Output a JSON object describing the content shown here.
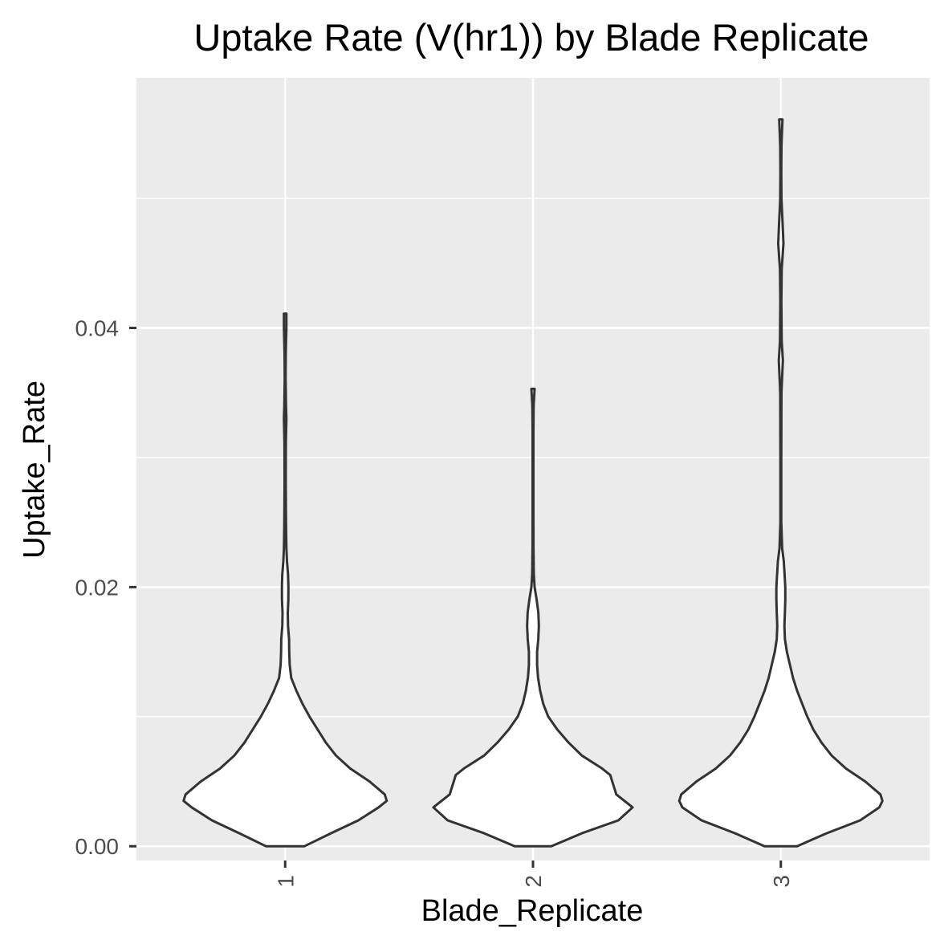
{
  "chart_data": {
    "type": "violin",
    "title": "Uptake Rate (V(hr1)) by Blade Replicate",
    "xlabel": "Blade_Replicate",
    "ylabel": "Uptake_Rate",
    "categories": [
      "1",
      "2",
      "3"
    ],
    "y_ticks": [
      0.0,
      0.02,
      0.04
    ],
    "y_tick_labels": [
      "0.00",
      "0.02",
      "0.04"
    ],
    "ylim": [
      -0.0011,
      0.0593
    ],
    "grid": true,
    "panel_background": "#ebebeb",
    "violin_fill": "#ffffff",
    "violin_outline": "#333333",
    "violins": [
      {
        "category": "1",
        "min": 0.0,
        "max": 0.0411,
        "density": [
          [
            0.0,
            0.19
          ],
          [
            0.001,
            0.45
          ],
          [
            0.002,
            0.72
          ],
          [
            0.003,
            0.92
          ],
          [
            0.0035,
            1.0
          ],
          [
            0.004,
            0.98
          ],
          [
            0.005,
            0.83
          ],
          [
            0.006,
            0.64
          ],
          [
            0.007,
            0.5
          ],
          [
            0.008,
            0.4
          ],
          [
            0.009,
            0.32
          ],
          [
            0.01,
            0.24
          ],
          [
            0.011,
            0.17
          ],
          [
            0.012,
            0.11
          ],
          [
            0.013,
            0.06
          ],
          [
            0.014,
            0.045
          ],
          [
            0.015,
            0.04
          ],
          [
            0.016,
            0.038
          ],
          [
            0.017,
            0.028
          ],
          [
            0.018,
            0.026
          ],
          [
            0.019,
            0.031
          ],
          [
            0.02,
            0.032
          ],
          [
            0.021,
            0.028
          ],
          [
            0.022,
            0.018
          ],
          [
            0.023,
            0.012
          ],
          [
            0.025,
            0.008
          ],
          [
            0.028,
            0.006
          ],
          [
            0.031,
            0.007
          ],
          [
            0.033,
            0.012
          ],
          [
            0.034,
            0.008
          ],
          [
            0.036,
            0.004
          ],
          [
            0.038,
            0.006
          ],
          [
            0.04,
            0.012
          ],
          [
            0.0411,
            0.012
          ]
        ]
      },
      {
        "category": "2",
        "min": 0.0,
        "max": 0.0353,
        "density": [
          [
            0.0,
            0.18
          ],
          [
            0.001,
            0.48
          ],
          [
            0.002,
            0.84
          ],
          [
            0.003,
            0.98
          ],
          [
            0.0035,
            0.9
          ],
          [
            0.004,
            0.82
          ],
          [
            0.005,
            0.78
          ],
          [
            0.0055,
            0.76
          ],
          [
            0.006,
            0.68
          ],
          [
            0.007,
            0.48
          ],
          [
            0.008,
            0.35
          ],
          [
            0.009,
            0.24
          ],
          [
            0.01,
            0.15
          ],
          [
            0.011,
            0.1
          ],
          [
            0.012,
            0.07
          ],
          [
            0.013,
            0.05
          ],
          [
            0.014,
            0.04
          ],
          [
            0.015,
            0.04
          ],
          [
            0.016,
            0.052
          ],
          [
            0.017,
            0.058
          ],
          [
            0.018,
            0.053
          ],
          [
            0.019,
            0.036
          ],
          [
            0.02,
            0.016
          ],
          [
            0.021,
            0.008
          ],
          [
            0.023,
            0.005
          ],
          [
            0.026,
            0.004
          ],
          [
            0.029,
            0.004
          ],
          [
            0.032,
            0.004
          ],
          [
            0.034,
            0.006
          ],
          [
            0.0353,
            0.016
          ]
        ]
      },
      {
        "category": "3",
        "min": 0.0,
        "max": 0.0561,
        "density": [
          [
            0.0,
            0.16
          ],
          [
            0.001,
            0.45
          ],
          [
            0.002,
            0.78
          ],
          [
            0.003,
            0.97
          ],
          [
            0.0035,
            1.0
          ],
          [
            0.004,
            0.98
          ],
          [
            0.005,
            0.83
          ],
          [
            0.006,
            0.64
          ],
          [
            0.007,
            0.5
          ],
          [
            0.008,
            0.4
          ],
          [
            0.009,
            0.32
          ],
          [
            0.01,
            0.26
          ],
          [
            0.011,
            0.21
          ],
          [
            0.012,
            0.16
          ],
          [
            0.013,
            0.12
          ],
          [
            0.014,
            0.09
          ],
          [
            0.015,
            0.06
          ],
          [
            0.016,
            0.04
          ],
          [
            0.017,
            0.035
          ],
          [
            0.018,
            0.04
          ],
          [
            0.019,
            0.044
          ],
          [
            0.02,
            0.044
          ],
          [
            0.021,
            0.037
          ],
          [
            0.022,
            0.029
          ],
          [
            0.023,
            0.013
          ],
          [
            0.025,
            0.004
          ],
          [
            0.03,
            0.004
          ],
          [
            0.035,
            0.006
          ],
          [
            0.0375,
            0.02
          ],
          [
            0.039,
            0.008
          ],
          [
            0.042,
            0.005
          ],
          [
            0.0445,
            0.008
          ],
          [
            0.0465,
            0.026
          ],
          [
            0.048,
            0.018
          ],
          [
            0.05,
            0.006
          ],
          [
            0.052,
            0.004
          ],
          [
            0.054,
            0.006
          ],
          [
            0.0561,
            0.016
          ]
        ]
      }
    ]
  }
}
